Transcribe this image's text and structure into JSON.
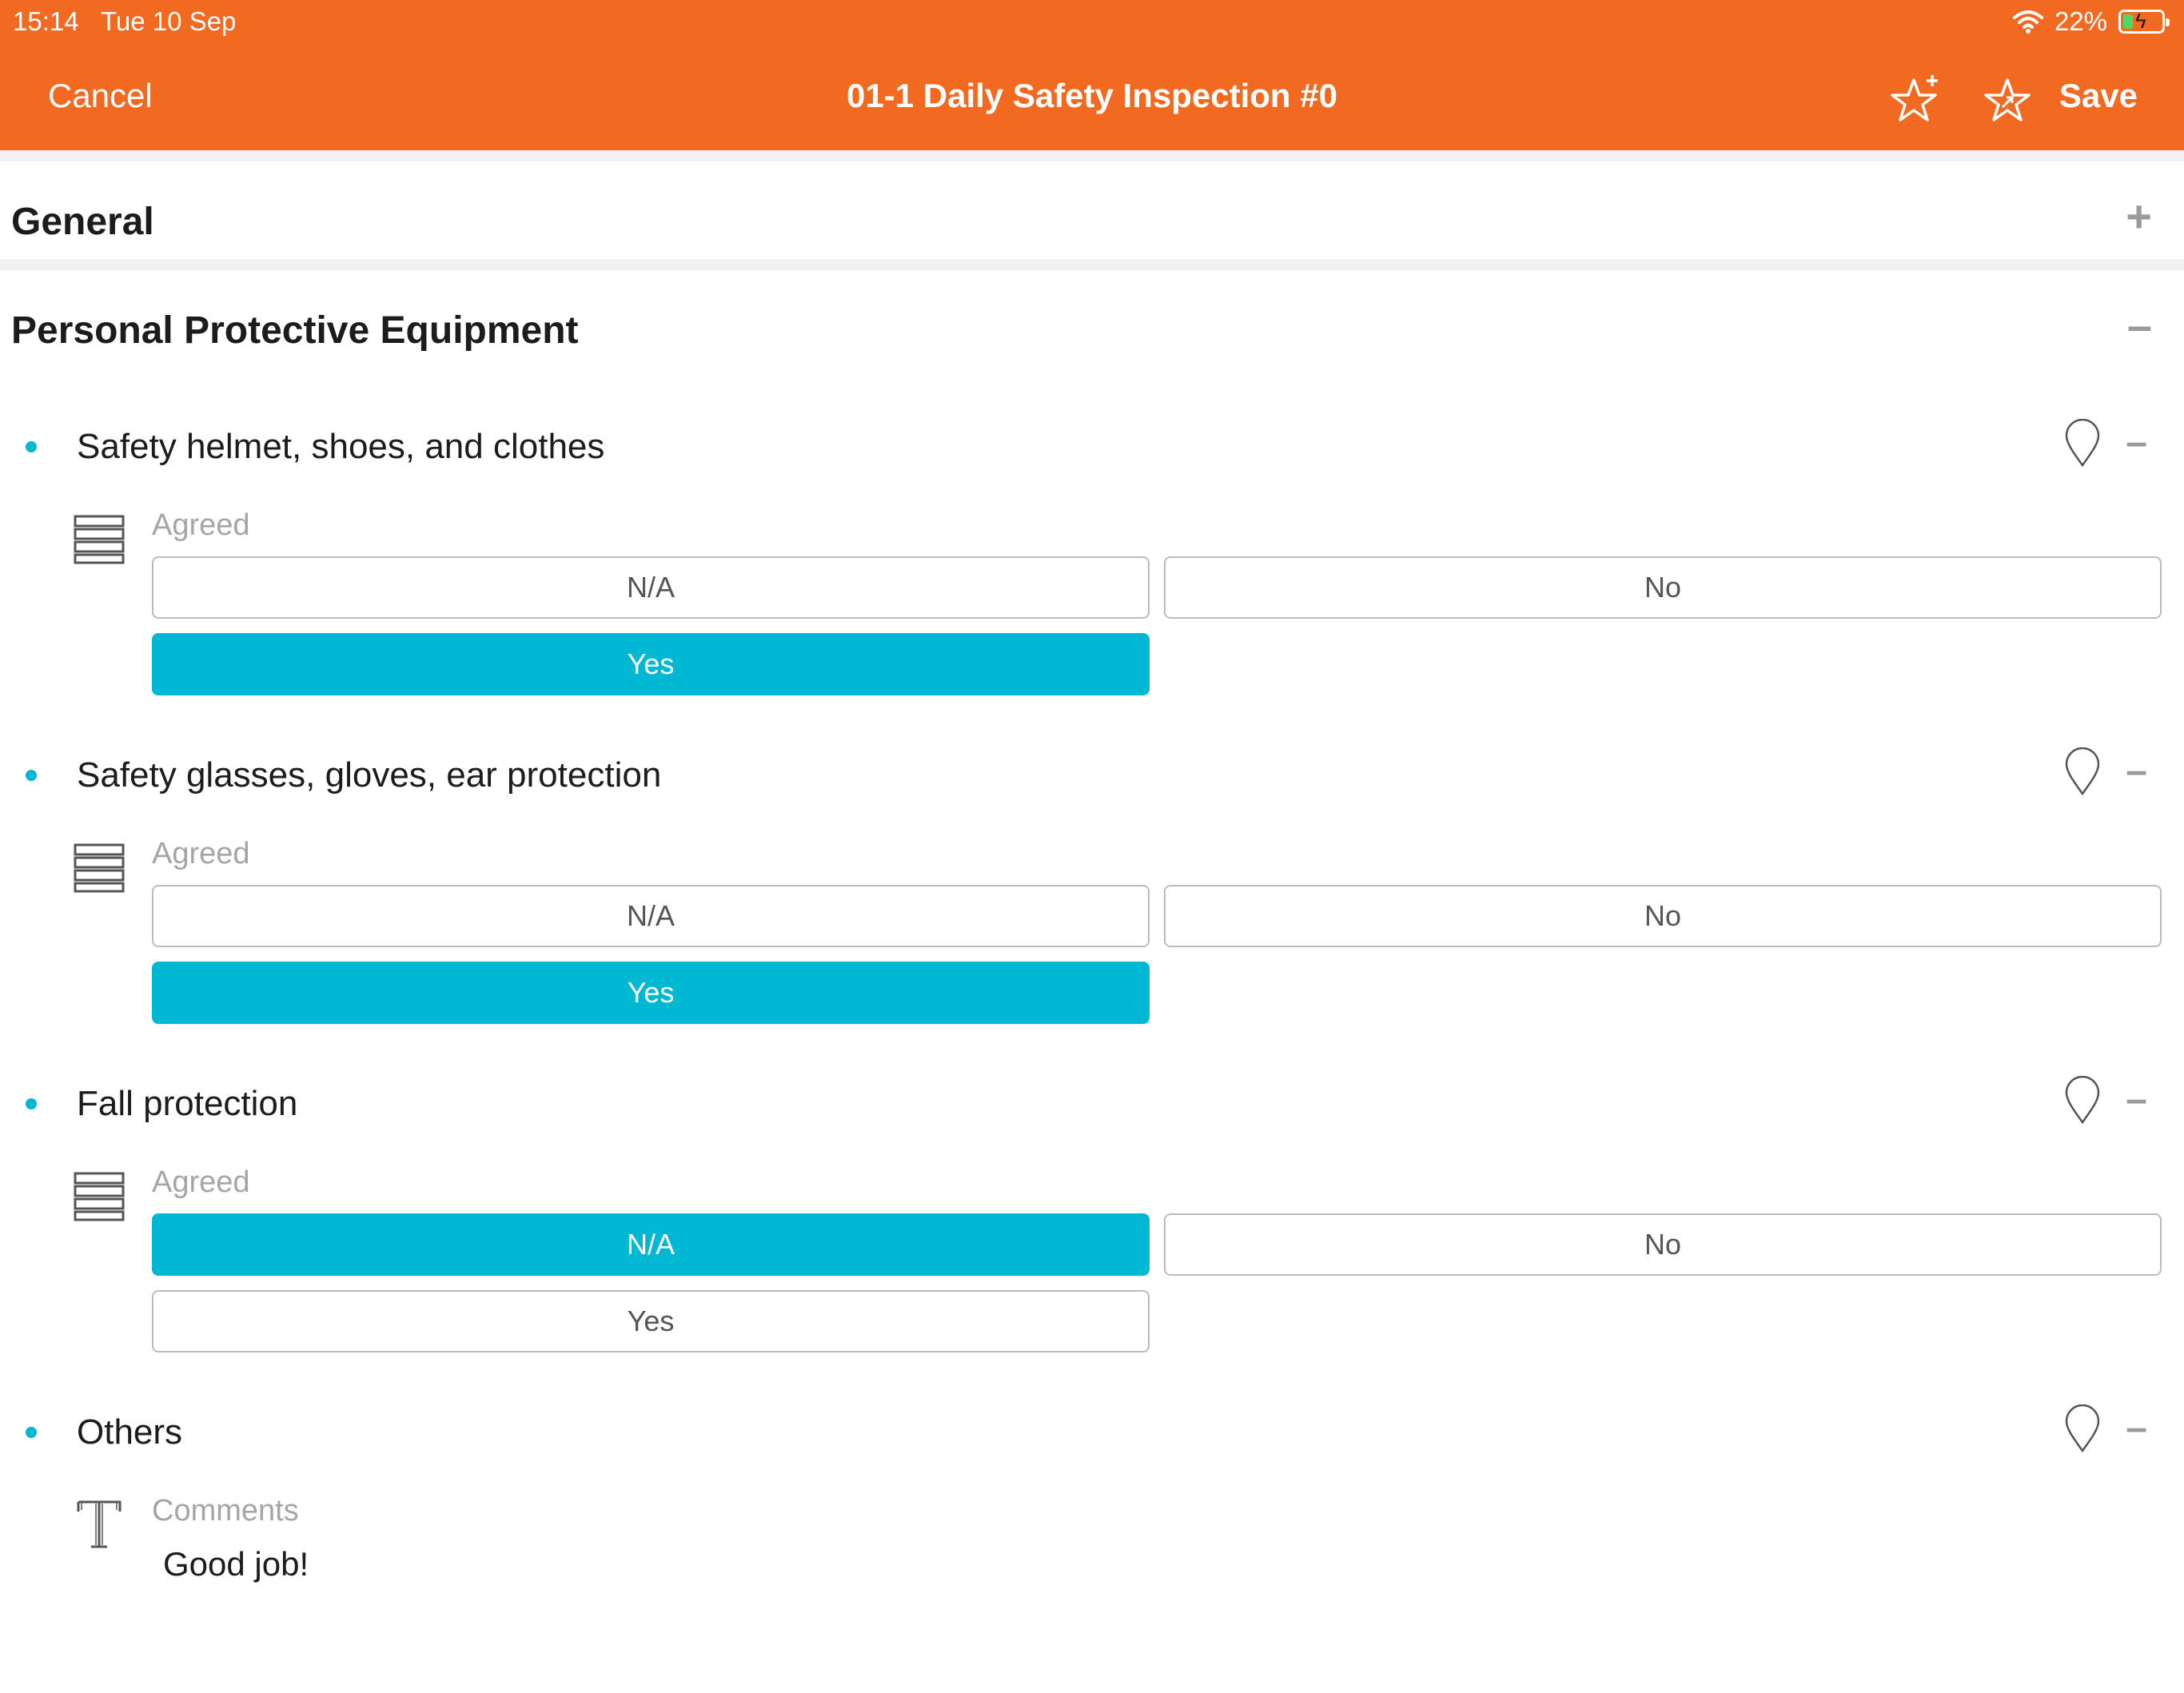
{
  "status": {
    "time": "15:14",
    "date": "Tue 10 Sep",
    "battery": "22%"
  },
  "nav": {
    "cancel_label": "Cancel",
    "title": "01-1 Daily Safety Inspection #0",
    "save_label": "Save"
  },
  "sections": [
    {
      "title": "General",
      "toggle": "+"
    },
    {
      "title": "Personal  Protective Equipment",
      "toggle": "–"
    }
  ],
  "items": [
    {
      "title": "Safety helmet, shoes, and clothes",
      "toggle": "–",
      "field_label": "Agreed",
      "options": [
        "N/A",
        "No",
        "Yes"
      ],
      "selected": "Yes"
    },
    {
      "title": "Safety glasses, gloves, ear protection",
      "toggle": "–",
      "field_label": "Agreed",
      "options": [
        "N/A",
        "No",
        "Yes"
      ],
      "selected": "Yes"
    },
    {
      "title": "Fall protection",
      "toggle": "–",
      "field_label": "Agreed",
      "options": [
        "N/A",
        "No",
        "Yes"
      ],
      "selected": "N/A"
    },
    {
      "title": "Others",
      "toggle": "–",
      "field_label": "Comments",
      "value": "Good job!"
    }
  ],
  "colors": {
    "brand": "#f26a22",
    "accent": "#00b8d4"
  },
  "icons": {
    "wifi": "wifi-icon",
    "battery": "battery-icon",
    "star_add": "star-add-icon",
    "star_share": "star-share-icon",
    "location": "location-pin-icon",
    "list_field": "list-field-icon",
    "text_field": "text-field-icon"
  }
}
